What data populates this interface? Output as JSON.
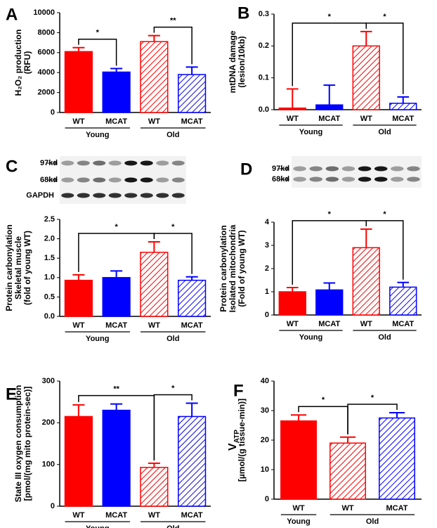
{
  "chart_data": [
    {
      "type": "bar",
      "panel": "A",
      "y_label": [
        "H₂O₂ production",
        "(RFU)"
      ],
      "categories": [
        "WT",
        "MCAT",
        "WT",
        "MCAT"
      ],
      "groups": [
        "Young",
        "Young",
        "Old",
        "Old"
      ],
      "values": [
        6100,
        4050,
        7100,
        3800
      ],
      "errors": [
        400,
        350,
        600,
        750
      ],
      "colors": [
        "#ff0000",
        "#0000ff",
        "#ff0000",
        "#0000ff"
      ],
      "hatched": [
        false,
        false,
        true,
        true
      ],
      "ylim": [
        0,
        10000
      ],
      "yticks": [
        0,
        2000,
        4000,
        6000,
        8000,
        10000
      ],
      "annotations": [
        {
          "text": "*",
          "from": 0,
          "to": 1
        },
        {
          "text": "**",
          "from": 2,
          "to": 3
        }
      ]
    },
    {
      "type": "bar",
      "panel": "B",
      "y_label": [
        "mtDNA damage",
        "(lesion/10kb)"
      ],
      "categories": [
        "WT",
        "MCAT",
        "WT",
        "MCAT"
      ],
      "groups": [
        "Young",
        "Young",
        "Old",
        "Old"
      ],
      "values": [
        0.005,
        0.015,
        0.2,
        0.02
      ],
      "errors": [
        0.06,
        0.062,
        0.045,
        0.02
      ],
      "colors": [
        "#ff0000",
        "#0000ff",
        "#ff0000",
        "#0000ff"
      ],
      "hatched": [
        false,
        false,
        true,
        true
      ],
      "ylim": [
        0,
        0.3
      ],
      "yticks": [
        {
          "value": 0,
          "label": "0.0"
        },
        0.1,
        0.2,
        0.3
      ],
      "annotations": [
        {
          "text": "*",
          "from": 0,
          "to": 2
        },
        {
          "text": "*",
          "from": 2,
          "to": 3
        }
      ]
    },
    {
      "type": "bar",
      "panel": "C",
      "blot": [
        "97kd",
        "68kd",
        "GAPDH"
      ],
      "y_label": [
        "Protein carbonylation",
        "Skeletal muscle",
        "(fold of young WT)"
      ],
      "categories": [
        "WT",
        "MCAT",
        "WT",
        "MCAT"
      ],
      "groups": [
        "Young",
        "Young",
        "Old",
        "Old"
      ],
      "values": [
        0.93,
        1.0,
        1.65,
        0.93
      ],
      "errors": [
        0.14,
        0.17,
        0.27,
        0.09
      ],
      "colors": [
        "#ff0000",
        "#0000ff",
        "#ff0000",
        "#0000ff"
      ],
      "hatched": [
        false,
        false,
        true,
        true
      ],
      "ylim": [
        0,
        2.5
      ],
      "yticks": [
        {
          "value": 0,
          "label": "0.0"
        },
        0.5,
        {
          "value": 1,
          "label": "1.0"
        },
        1.5,
        {
          "value": 2,
          "label": "2.0"
        },
        2.5
      ],
      "annotations": [
        {
          "text": "*",
          "from": 0,
          "to": 2
        },
        {
          "text": "*",
          "from": 2,
          "to": 3
        }
      ]
    },
    {
      "type": "bar",
      "panel": "D",
      "blot": [
        "97kd",
        "68kd"
      ],
      "y_label": [
        "Protein carbonylation",
        "Isolated mitochondria",
        "(Fold of young WT)"
      ],
      "categories": [
        "WT",
        "MCAT",
        "WT",
        "MCAT"
      ],
      "groups": [
        "Young",
        "Young",
        "Old",
        "Old"
      ],
      "values": [
        1.0,
        1.08,
        2.9,
        1.2
      ],
      "errors": [
        0.18,
        0.3,
        0.8,
        0.2
      ],
      "colors": [
        "#ff0000",
        "#0000ff",
        "#ff0000",
        "#0000ff"
      ],
      "hatched": [
        false,
        false,
        true,
        true
      ],
      "ylim": [
        0,
        4
      ],
      "yticks": [
        0,
        1,
        2,
        3,
        4
      ],
      "annotations": [
        {
          "text": "*",
          "from": 0,
          "to": 2
        },
        {
          "text": "*",
          "from": 2,
          "to": 3
        }
      ]
    },
    {
      "type": "bar",
      "panel": "E",
      "y_label": [
        "State III oxygen consumption",
        "[pmol/(mg mito protein-sec)]"
      ],
      "categories": [
        "WT",
        "MCAT",
        "WT",
        "MCAT"
      ],
      "groups": [
        "Young",
        "Young",
        "Old",
        "Old"
      ],
      "values": [
        215,
        230,
        93,
        215
      ],
      "errors": [
        28,
        15,
        10,
        32
      ],
      "colors": [
        "#ff0000",
        "#0000ff",
        "#ff0000",
        "#0000ff"
      ],
      "hatched": [
        false,
        false,
        true,
        true
      ],
      "ylim": [
        0,
        300
      ],
      "yticks": [
        0,
        100,
        200,
        300
      ],
      "annotations": [
        {
          "text": "**",
          "from": 0,
          "to": 2
        },
        {
          "text": "*",
          "from": 2,
          "to": 3
        }
      ]
    },
    {
      "type": "bar",
      "panel": "F",
      "y_label": [
        "V",
        "[µmol/(g tissue-min)]"
      ],
      "y_label_subscript": "ATP",
      "categories": [
        "WT",
        "WT",
        "MCAT"
      ],
      "groups": [
        "Young",
        "Old",
        "Old"
      ],
      "values": [
        26.5,
        19,
        27.5
      ],
      "errors": [
        2,
        2,
        1.8
      ],
      "colors": [
        "#ff0000",
        "#ff0000",
        "#0000ff"
      ],
      "hatched": [
        false,
        true,
        true
      ],
      "ylim": [
        0,
        40
      ],
      "yticks": [
        0,
        10,
        20,
        30,
        40
      ],
      "annotations": [
        {
          "text": "*",
          "from": 0,
          "to": 1
        },
        {
          "text": "*",
          "from": 1,
          "to": 2
        }
      ]
    }
  ]
}
